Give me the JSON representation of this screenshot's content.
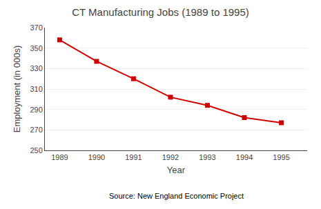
{
  "chart_data": {
    "type": "line",
    "title": "CT Manufacturing Jobs (1989 to 1995)",
    "x_label": "Year",
    "y_label": "Employment (in 000s)",
    "annotation": "Source: New England Economic Project",
    "x": [
      1989,
      1990,
      1991,
      1992,
      1993,
      1994,
      1995
    ],
    "values": [
      358,
      337,
      320,
      302,
      294,
      282,
      277
    ],
    "xlim": [
      1988.6,
      1995.7
    ],
    "xticks": [
      1989,
      1990,
      1991,
      1992,
      1993,
      1994,
      1995
    ],
    "ylim": [
      250,
      370
    ],
    "yticks": [
      250,
      270,
      290,
      310,
      330,
      350,
      370
    ],
    "color": "#cc0000",
    "marker": "square",
    "grid": true
  }
}
